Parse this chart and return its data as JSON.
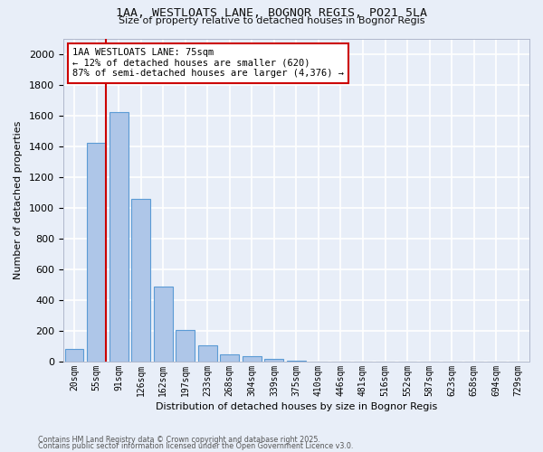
{
  "title_line1": "1AA, WESTLOATS LANE, BOGNOR REGIS, PO21 5LA",
  "title_line2": "Size of property relative to detached houses in Bognor Regis",
  "xlabel": "Distribution of detached houses by size in Bognor Regis",
  "ylabel": "Number of detached properties",
  "categories": [
    "20sqm",
    "55sqm",
    "91sqm",
    "126sqm",
    "162sqm",
    "197sqm",
    "233sqm",
    "268sqm",
    "304sqm",
    "339sqm",
    "375sqm",
    "410sqm",
    "446sqm",
    "481sqm",
    "516sqm",
    "552sqm",
    "587sqm",
    "623sqm",
    "658sqm",
    "694sqm",
    "729sqm"
  ],
  "values": [
    80,
    1420,
    1620,
    1055,
    490,
    205,
    105,
    45,
    35,
    20,
    5,
    2,
    0,
    0,
    0,
    0,
    0,
    0,
    0,
    0,
    0
  ],
  "bar_color": "#aec6e8",
  "bar_edge_color": "#5b9bd5",
  "vline_x": 1.42,
  "vline_color": "#cc0000",
  "annotation_text": "1AA WESTLOATS LANE: 75sqm\n← 12% of detached houses are smaller (620)\n87% of semi-detached houses are larger (4,376) →",
  "annotation_box_color": "#ffffff",
  "annotation_box_edge": "#cc0000",
  "ylim": [
    0,
    2100
  ],
  "yticks": [
    0,
    200,
    400,
    600,
    800,
    1000,
    1200,
    1400,
    1600,
    1800,
    2000
  ],
  "background_color": "#e8eef8",
  "grid_color": "#ffffff",
  "footer_line1": "Contains HM Land Registry data © Crown copyright and database right 2025.",
  "footer_line2": "Contains public sector information licensed under the Open Government Licence v3.0."
}
